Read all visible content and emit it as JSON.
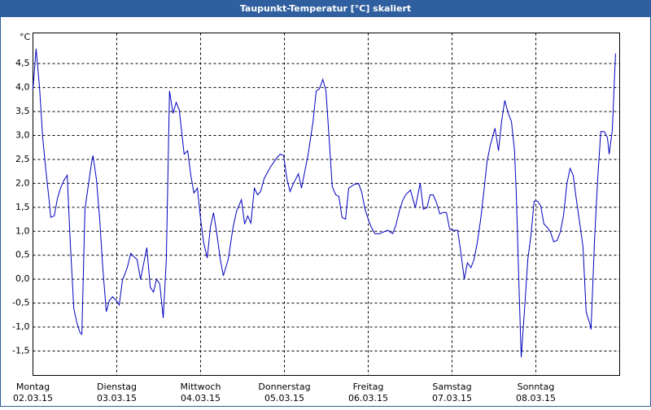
{
  "chart_data": {
    "type": "line",
    "title": "Taupunkt-Temperatur [°C] skaliert",
    "y_label": "°C",
    "xlim": [
      0,
      168
    ],
    "ylim": [
      -2.01,
      5.14
    ],
    "xticks": [
      {
        "value": 0,
        "label": "Montag"
      },
      {
        "value": 24,
        "label": "Dienstag"
      },
      {
        "value": 48,
        "label": "Mittwoch"
      },
      {
        "value": 72,
        "label": "Donnerstag"
      },
      {
        "value": 96,
        "label": "Freitag"
      },
      {
        "value": 120,
        "label": "Samstag"
      },
      {
        "value": 144,
        "label": "Sonntag"
      }
    ],
    "xtick_dates": [
      "02.03.15",
      "03.03.15",
      "04.03.15",
      "05.03.15",
      "06.03.15",
      "07.03.15",
      "08.03.15"
    ],
    "yticks": [
      {
        "value": 4.5,
        "label": "4,5"
      },
      {
        "value": 4,
        "label": "4,0"
      },
      {
        "value": 3.5,
        "label": "3,5"
      },
      {
        "value": 3,
        "label": "3,0"
      },
      {
        "value": 2.5,
        "label": "2,5"
      },
      {
        "value": 2,
        "label": "2,0"
      },
      {
        "value": 1.5,
        "label": "1,5"
      },
      {
        "value": 1,
        "label": "1,0"
      },
      {
        "value": 0.5,
        "label": "0,5"
      },
      {
        "value": 0,
        "label": "0,0"
      },
      {
        "value": -0.5,
        "label": "-0,5"
      },
      {
        "value": -1,
        "label": "-1,0"
      },
      {
        "value": -1.5,
        "label": "-1,5"
      }
    ],
    "grid": true,
    "series": [
      {
        "color": "#0000c0",
        "x": [
          0,
          0.9,
          1.9,
          2.8,
          3.7,
          4.7,
          5.1,
          6.1,
          7.0,
          7.9,
          8.9,
          9.8,
          10.7,
          11.7,
          12.6,
          13.5,
          14.0,
          14.9,
          15.8,
          16.8,
          17.2,
          18.2,
          19.1,
          20.0,
          21.0,
          21.9,
          22.8,
          23.8,
          24.7,
          25.6,
          27.0,
          28.0,
          28.9,
          29.8,
          30.8,
          31.7,
          32.6,
          33.6,
          34.5,
          35.4,
          36.3,
          37.3,
          38.2,
          39.1,
          40.1,
          41.0,
          41.9,
          43.3,
          44.3,
          45.2,
          46.1,
          47.1,
          48.0,
          48.9,
          49.9,
          50.8,
          51.7,
          52.7,
          53.6,
          54.5,
          55.9,
          57.3,
          58.3,
          59.7,
          60.6,
          61.5,
          62.4,
          63.4,
          64.3,
          65.2,
          66.2,
          68.0,
          69.9,
          70.8,
          71.8,
          72.7,
          73.6,
          74.6,
          76.0,
          76.9,
          77.8,
          78.8,
          80.2,
          81.1,
          82.0,
          83.0,
          83.9,
          84.8,
          85.7,
          86.7,
          87.6,
          88.5,
          89.5,
          90.4,
          91.8,
          93.2,
          94.1,
          95.1,
          96.0,
          96.9,
          97.9,
          99.3,
          100.2,
          101.6,
          103.0,
          103.9,
          104.9,
          105.8,
          106.7,
          108.1,
          109.5,
          110.4,
          110.9,
          111.8,
          112.8,
          113.7,
          114.6,
          115.6,
          116.5,
          117.4,
          118.4,
          119.3,
          120.2,
          121.6,
          122.6,
          123.5,
          124.4,
          125.4,
          126.3,
          127.2,
          128.2,
          129.1,
          130.0,
          130.9,
          131.9,
          132.3,
          133.3,
          134.2,
          135.1,
          136.1,
          137.0,
          137.9,
          138.4,
          139.3,
          139.8,
          140.7,
          141.7,
          142.6,
          143.5,
          144.5,
          145.4,
          146.3,
          147.3,
          148.2,
          149.1,
          150.1,
          151.0,
          151.9,
          152.9,
          153.8,
          154.7,
          155.6,
          156.6,
          157.5,
          158.4,
          159.4,
          159.8,
          160.8,
          161.7,
          162.6,
          163.6,
          164.5,
          165.0,
          165.9,
          166.8
        ],
        "values": [
          3.97,
          4.81,
          3.97,
          2.95,
          2.27,
          1.59,
          1.29,
          1.32,
          1.68,
          1.9,
          2.07,
          2.17,
          0.75,
          -0.61,
          -0.92,
          -1.12,
          -1.15,
          1.46,
          1.93,
          2.44,
          2.58,
          2.07,
          1.25,
          0.24,
          -0.68,
          -0.44,
          -0.37,
          -0.44,
          -0.54,
          -0.03,
          0.24,
          0.54,
          0.47,
          0.41,
          0,
          0.32,
          0.66,
          -0.17,
          -0.27,
          0,
          -0.1,
          -0.81,
          0.41,
          3.93,
          3.46,
          3.69,
          3.53,
          2.61,
          2.68,
          2.17,
          1.8,
          1.9,
          1.25,
          0.75,
          0.44,
          1.08,
          1.39,
          0.92,
          0.44,
          0.07,
          0.41,
          1.08,
          1.42,
          1.66,
          1.15,
          1.32,
          1.17,
          1.9,
          1.76,
          1.83,
          2.1,
          2.34,
          2.54,
          2.61,
          2.58,
          2.1,
          1.83,
          2.0,
          2.2,
          1.9,
          2.24,
          2.61,
          3.29,
          3.93,
          3.97,
          4.17,
          3.93,
          2.95,
          1.93,
          1.76,
          1.73,
          1.29,
          1.25,
          1.9,
          1.97,
          2.0,
          1.83,
          1.46,
          1.25,
          1.08,
          0.95,
          0.95,
          0.98,
          1.02,
          0.95,
          1.12,
          1.42,
          1.63,
          1.76,
          1.86,
          1.49,
          1.83,
          2.0,
          1.46,
          1.49,
          1.76,
          1.76,
          1.59,
          1.36,
          1.39,
          1.39,
          1.05,
          1.02,
          1.02,
          0.51,
          0,
          0.34,
          0.24,
          0.41,
          0.75,
          1.25,
          1.83,
          2.44,
          2.78,
          3.05,
          3.15,
          2.68,
          3.29,
          3.73,
          3.46,
          3.29,
          2.68,
          1.76,
          -0.44,
          -1.63,
          -0.71,
          0.41,
          0.92,
          1.63,
          1.63,
          1.53,
          1.15,
          1.08,
          0.98,
          0.78,
          0.81,
          0.98,
          1.32,
          2.0,
          2.31,
          2.17,
          1.66,
          1.15,
          0.68,
          -0.68,
          -0.92,
          -1.05,
          0.81,
          2.1,
          3.08,
          3.08,
          2.95,
          2.61,
          3.12,
          4.71
        ]
      }
    ]
  }
}
